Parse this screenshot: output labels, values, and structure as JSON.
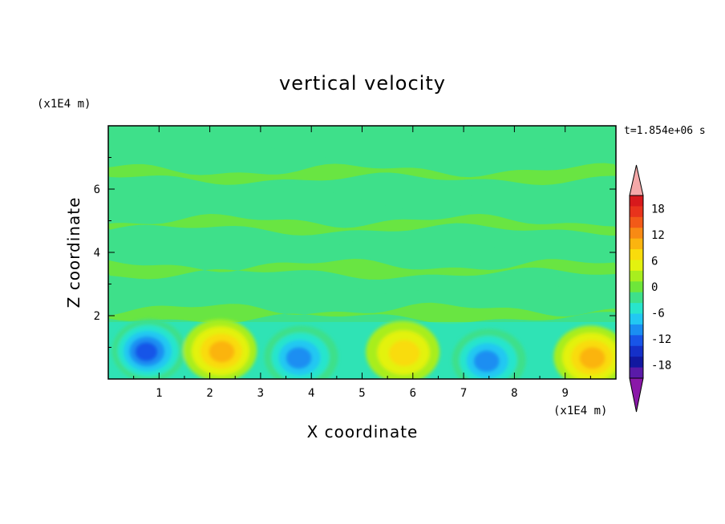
{
  "chart_data": {
    "type": "heatmap",
    "title": "vertical velocity",
    "xlabel": "X coordinate",
    "ylabel": "Z coordinate",
    "x_unit": "(x1E4 m)",
    "y_unit": "(x1E4 m)",
    "time_label": "t=1.854e+06 s",
    "xlim": [
      0,
      10
    ],
    "ylim": [
      0,
      8
    ],
    "x_ticks": [
      "1",
      "2",
      "3",
      "4",
      "5",
      "6",
      "7",
      "8",
      "9"
    ],
    "y_ticks": [
      "2",
      "4",
      "6"
    ],
    "colorbar": {
      "tick_labels": [
        "18",
        "12",
        "6",
        "0",
        "-6",
        "-12",
        "-18"
      ],
      "levels": [
        21,
        18,
        15,
        12,
        9,
        6,
        3,
        0,
        -3,
        -6,
        -9,
        -12,
        -15,
        -18,
        -21
      ],
      "colors": [
        "#d7191c",
        "#e8331c",
        "#f25a18",
        "#f88a14",
        "#fbb40f",
        "#f9dc0c",
        "#e3f20f",
        "#a8ee1e",
        "#6ee63a",
        "#3ee08a",
        "#28e5cc",
        "#22c8f2",
        "#1a8ef2",
        "#1855e8",
        "#1530c8",
        "#1218a0",
        "#5a1aa8"
      ],
      "over_color": "#f4a8a8",
      "under_color": "#8a18a8"
    },
    "features": [
      {
        "kind": "downdraft",
        "x": 0.8,
        "z": 0.9,
        "peak": -15
      },
      {
        "kind": "updraft",
        "x": 2.2,
        "z": 0.9,
        "peak": 12
      },
      {
        "kind": "downdraft",
        "x": 3.8,
        "z": 0.7,
        "peak": -12
      },
      {
        "kind": "updraft",
        "x": 5.8,
        "z": 0.85,
        "peak": 10
      },
      {
        "kind": "downdraft",
        "x": 7.5,
        "z": 0.6,
        "peak": -13
      },
      {
        "kind": "updraft",
        "x": 9.5,
        "z": 0.7,
        "peak": 12
      }
    ]
  }
}
